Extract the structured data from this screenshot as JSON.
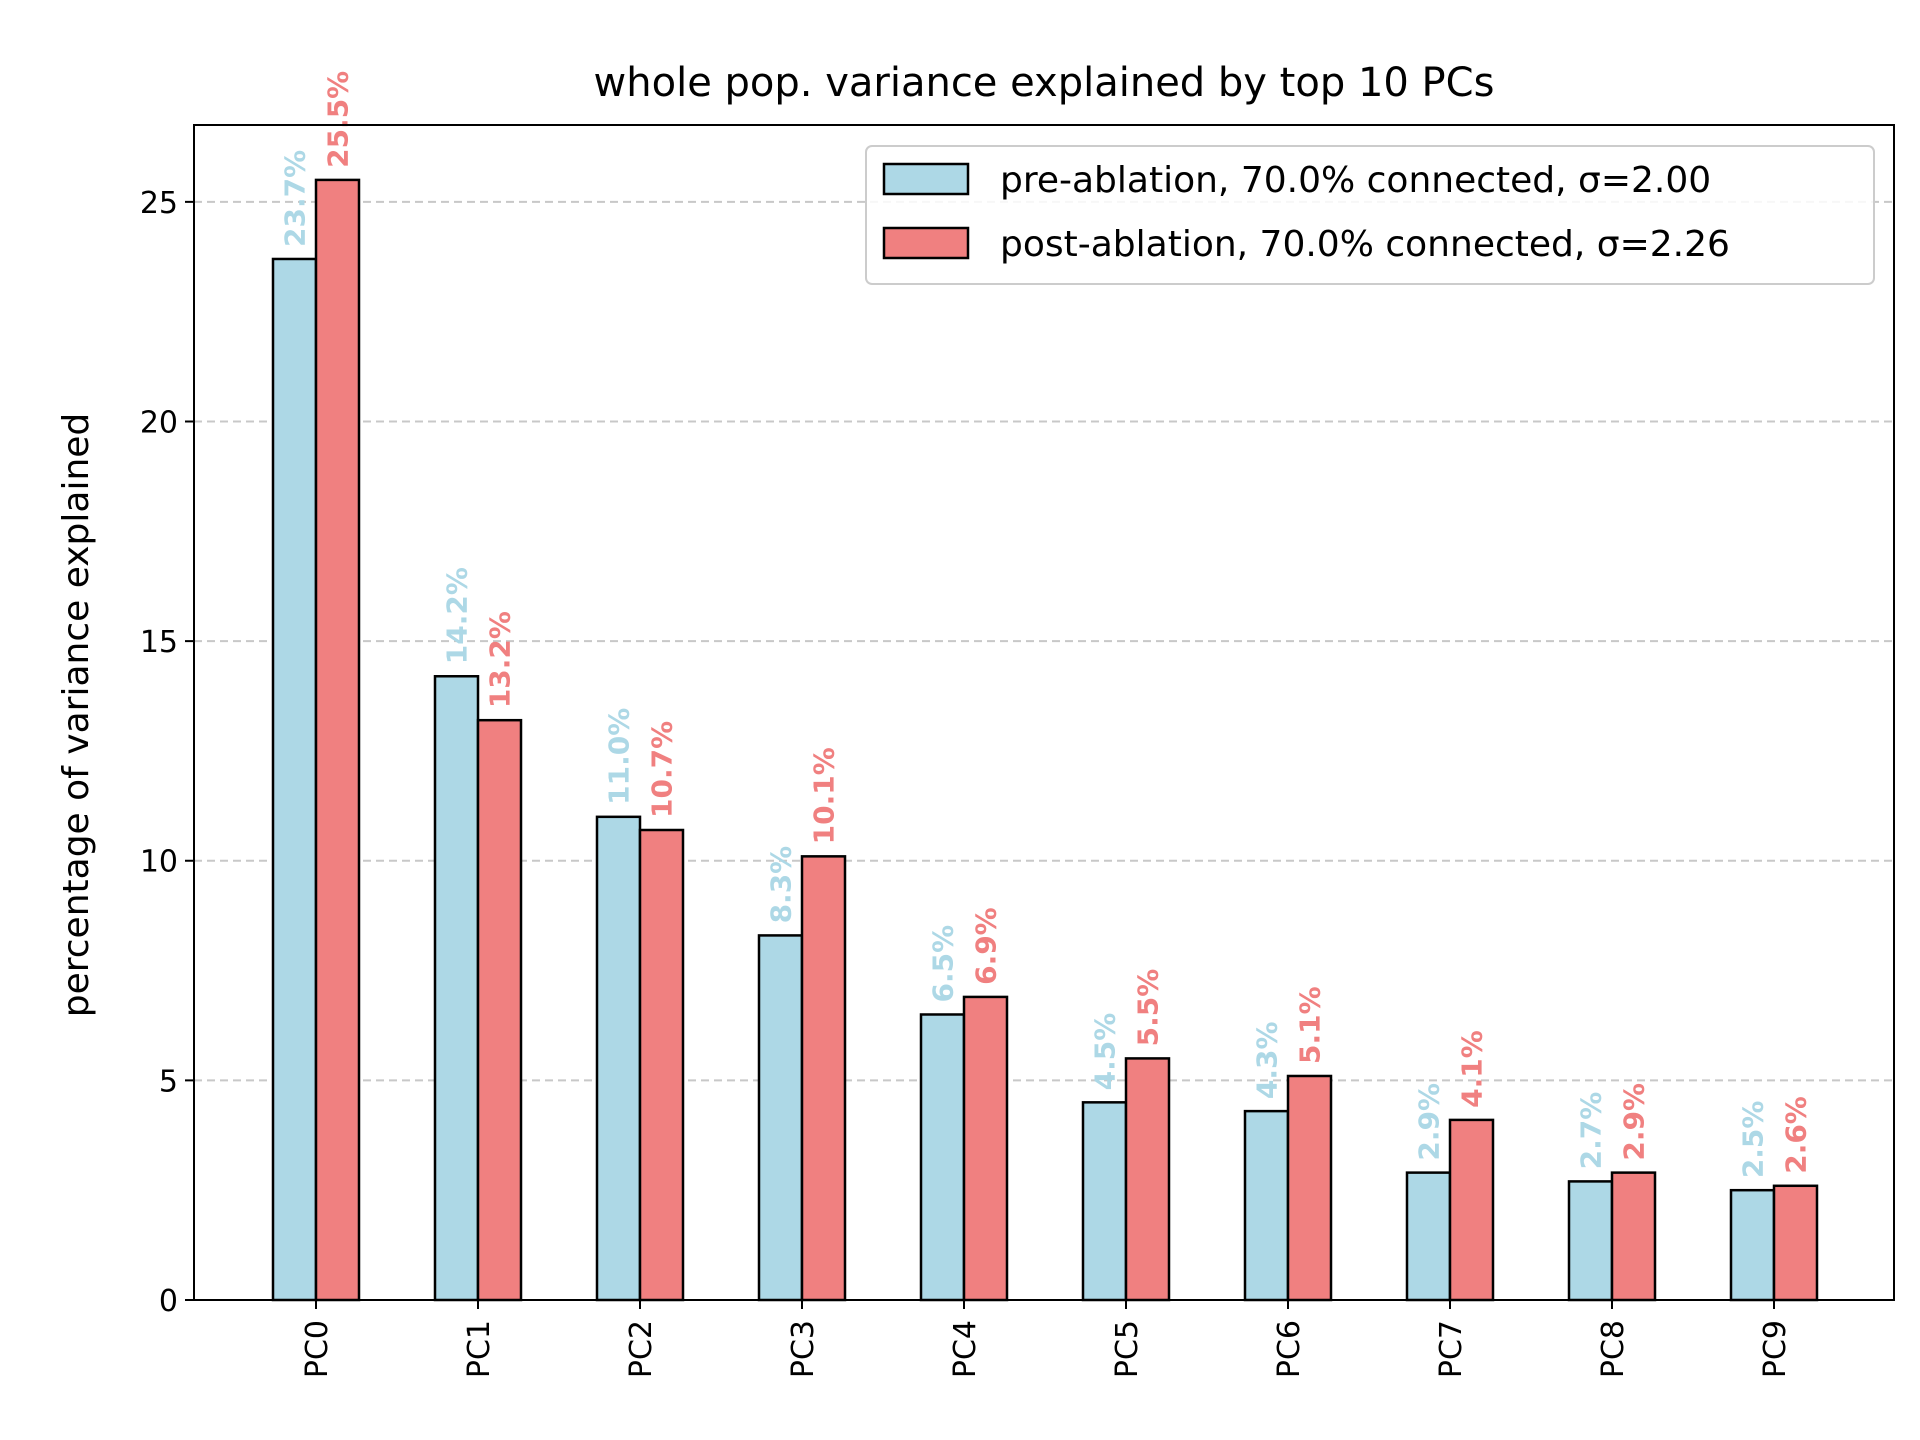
{
  "chart_data": {
    "type": "bar",
    "title": "whole pop. variance explained by top 10 PCs",
    "xlabel": "",
    "ylabel": "percentage of variance explained",
    "categories": [
      "PC0",
      "PC1",
      "PC2",
      "PC3",
      "PC4",
      "PC5",
      "PC6",
      "PC7",
      "PC8",
      "PC9"
    ],
    "series": [
      {
        "name": "pre-ablation, 70.0% connected, σ=2.00",
        "color": "#add8e6",
        "values": [
          23.7,
          14.2,
          11.0,
          8.3,
          6.5,
          4.5,
          4.3,
          2.9,
          2.7,
          2.5
        ],
        "labels": [
          "23.7%",
          "14.2%",
          "11.0%",
          "8.3%",
          "6.5%",
          "4.5%",
          "4.3%",
          "2.9%",
          "2.7%",
          "2.5%"
        ]
      },
      {
        "name": "post-ablation, 70.0% connected, σ=2.26",
        "color": "#f08080",
        "values": [
          25.5,
          13.2,
          10.7,
          10.1,
          6.9,
          5.5,
          5.1,
          4.1,
          2.9,
          2.6
        ],
        "labels": [
          "25.5%",
          "13.2%",
          "10.7%",
          "10.1%",
          "6.9%",
          "5.5%",
          "5.1%",
          "4.1%",
          "2.9%",
          "2.6%"
        ]
      }
    ],
    "ylim": [
      0,
      26.75
    ],
    "yticks": [
      0,
      5,
      10,
      15,
      20,
      25
    ],
    "ytick_labels": [
      "0",
      "5",
      "10",
      "15",
      "20",
      "25"
    ],
    "grid": "y-dashed",
    "legend_position": "top-right"
  }
}
